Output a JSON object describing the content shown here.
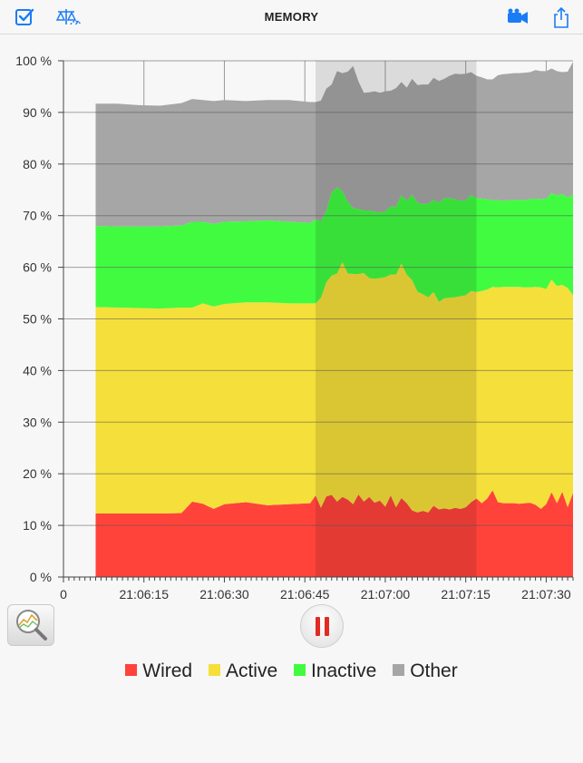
{
  "app": {
    "title": "MEMORY"
  },
  "toolbar": {
    "left_icons": [
      "checkbox-icon",
      "balance-scale-icon"
    ],
    "right_icons": [
      "video-camera-icon",
      "share-icon"
    ],
    "accent": "#1a7cf5"
  },
  "controls": {
    "zoom_icon": "magnifier-chart-icon",
    "pause_icon": "pause-icon",
    "pause_color": "#e22a24"
  },
  "chart_data": {
    "type": "area",
    "stacked": true,
    "xlabel": "",
    "ylabel": "",
    "ylim": [
      0,
      100
    ],
    "y_ticks": [
      0,
      10,
      20,
      30,
      40,
      50,
      60,
      70,
      80,
      90,
      100
    ],
    "y_tick_labels": [
      "0 %",
      "10 %",
      "20 %",
      "30 %",
      "40 %",
      "50 %",
      "60 %",
      "70 %",
      "80 %",
      "90 %",
      "100 %"
    ],
    "x_unit": "seconds",
    "x_origin_label": "0",
    "x_ticks": [
      15,
      30,
      45,
      60,
      75,
      90
    ],
    "x_tick_labels": [
      "21:06:15",
      "21:06:30",
      "21:06:45",
      "21:07:00",
      "21:07:15",
      "21:07:30"
    ],
    "xlim": [
      0,
      95
    ],
    "x": [
      6,
      10,
      14,
      18,
      22,
      24,
      26,
      28,
      30,
      34,
      38,
      42,
      46,
      47,
      48,
      49,
      50,
      51,
      52,
      53,
      54,
      55,
      56,
      57,
      58,
      59,
      60,
      61,
      62,
      63,
      64,
      65,
      66,
      67,
      68,
      69,
      70,
      71,
      72,
      73,
      74,
      75,
      76,
      77,
      78,
      79,
      80,
      81,
      82,
      83,
      84,
      85,
      86,
      87,
      88,
      89,
      90,
      91,
      92,
      93,
      94,
      95
    ],
    "series": [
      {
        "name": "Wired",
        "color": "#ff433b",
        "values": [
          12.3,
          12.3,
          12.3,
          12.3,
          12.4,
          14.6,
          14.2,
          13.2,
          14.1,
          14.5,
          13.9,
          14.1,
          14.3,
          15.8,
          13.4,
          15.6,
          15.9,
          14.6,
          15.5,
          15.0,
          14.1,
          16.0,
          14.6,
          15.5,
          14.4,
          14.8,
          13.6,
          15.8,
          13.5,
          15.3,
          14.3,
          12.9,
          12.5,
          12.8,
          12.5,
          13.8,
          13.1,
          13.3,
          13.1,
          13.4,
          13.2,
          13.5,
          14.5,
          15.2,
          14.3,
          15.2,
          16.8,
          14.5,
          14.3,
          14.3,
          14.3,
          14.2,
          14.3,
          14.4,
          14.0,
          13.2,
          14.1,
          16.4,
          14.3,
          16.5,
          13.5,
          16.3
        ]
      },
      {
        "name": "Active",
        "color": "#f5df3a",
        "values": [
          40.0,
          39.9,
          39.8,
          39.7,
          39.8,
          37.6,
          38.8,
          39.2,
          38.8,
          38.7,
          39.3,
          38.9,
          38.7,
          37.2,
          40.7,
          41.5,
          42.5,
          44.2,
          45.5,
          43.8,
          44.6,
          42.7,
          44.3,
          42.4,
          43.4,
          43.1,
          44.5,
          42.8,
          45.1,
          45.4,
          44.3,
          44.6,
          42.8,
          42.0,
          41.7,
          41.4,
          40.2,
          40.7,
          41.0,
          40.8,
          41.2,
          41.1,
          40.9,
          40.0,
          41.1,
          40.5,
          39.4,
          41.6,
          41.9,
          41.9,
          41.9,
          42.0,
          41.8,
          41.7,
          42.2,
          42.9,
          41.7,
          41.2,
          42.1,
          40.1,
          42.5,
          38.3
        ]
      },
      {
        "name": "Inactive",
        "color": "#41fb41",
        "values": [
          15.7,
          15.7,
          15.8,
          15.9,
          15.9,
          16.6,
          15.8,
          16.0,
          15.9,
          15.7,
          15.9,
          15.8,
          15.6,
          16.3,
          14.8,
          13.8,
          16.1,
          16.7,
          13.8,
          13.9,
          12.8,
          12.6,
          12.1,
          13.1,
          13.0,
          12.7,
          12.8,
          13.2,
          13.1,
          13.3,
          14.3,
          16.6,
          17.2,
          17.5,
          18.1,
          17.9,
          19.2,
          19.4,
          19.3,
          19.0,
          18.5,
          18.4,
          18.6,
          18.2,
          17.9,
          17.5,
          16.8,
          16.9,
          16.7,
          16.8,
          16.8,
          16.9,
          16.9,
          17.1,
          17.1,
          17.1,
          17.5,
          16.8,
          17.5,
          17.6,
          17.5,
          19.5
        ]
      },
      {
        "name": "Other",
        "color": "#a6a6a6",
        "values": [
          23.7,
          23.8,
          23.5,
          23.4,
          23.7,
          23.8,
          23.6,
          23.8,
          23.6,
          23.3,
          23.3,
          23.6,
          23.4,
          22.7,
          23.4,
          23.7,
          20.9,
          22.5,
          22.8,
          25.2,
          27.5,
          24.7,
          22.8,
          22.9,
          23.3,
          23.2,
          23.2,
          22.4,
          23.0,
          21.9,
          21.9,
          22.4,
          22.8,
          23.1,
          23.1,
          23.6,
          23.6,
          23.1,
          23.7,
          24.3,
          24.5,
          24.5,
          23.8,
          23.7,
          23.5,
          23.2,
          23.4,
          24.2,
          24.5,
          24.5,
          24.6,
          24.5,
          24.7,
          24.6,
          24.9,
          24.8,
          24.7,
          24.1,
          24.1,
          23.6,
          24.4,
          25.7
        ]
      }
    ],
    "highlight_range": [
      47,
      77
    ],
    "legend_position": "bottom-center",
    "grid": true
  }
}
